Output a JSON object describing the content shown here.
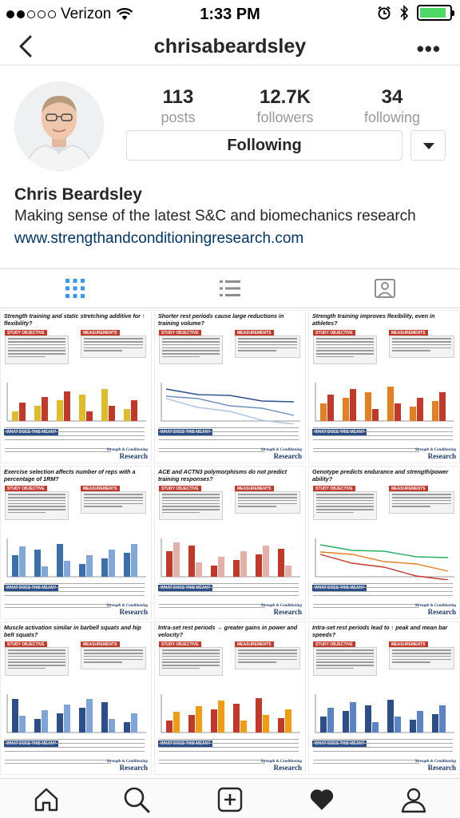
{
  "status_bar": {
    "carrier": "Verizon",
    "time": "1:33 PM",
    "signal_bars_filled": 2,
    "signal_bars_total": 5,
    "battery_level": 0.9
  },
  "nav": {
    "username": "chrisabeardsley"
  },
  "profile": {
    "posts_count": "113",
    "posts_label": "posts",
    "followers_count": "12.7K",
    "followers_label": "followers",
    "following_count": "34",
    "following_label": "following",
    "follow_button_label": "Following",
    "full_name": "Chris Beardsley",
    "bio": "Making sense of the latest S&C and biomechanics research",
    "website": "www.strengthandconditioningresearch.com"
  },
  "posts": [
    {
      "title": "Strength training and static stretching additive for ↑ flexibility?",
      "objective": "STUDY OBJECTIVE",
      "measurements": "MEASUREMENTS",
      "meaning": "WHAT DOES THIS MEAN?",
      "brand_top": "Strength & Conditioning",
      "brand_bottom": "Research"
    },
    {
      "title": "Shorter rest periods cause large reductions in training volume?",
      "objective": "STUDY OBJECTIVE",
      "measurements": "MEASUREMENTS",
      "meaning": "WHAT DOES THIS MEAN?",
      "brand_top": "Strength & Conditioning",
      "brand_bottom": "Research"
    },
    {
      "title": "Strength training improves flexibility, even in athletes?",
      "objective": "STUDY OBJECTIVE",
      "measurements": "MEASUREMENTS",
      "meaning": "WHAT DOES THIS MEAN?",
      "brand_top": "Strength & Conditioning",
      "brand_bottom": "Research"
    },
    {
      "title": "Exercise selection affects number of reps with a percentage of 1RM?",
      "objective": "STUDY OBJECTIVE",
      "measurements": "MEASUREMENTS",
      "meaning": "WHAT DOES THIS MEAN?",
      "brand_top": "Strength & Conditioning",
      "brand_bottom": "Research"
    },
    {
      "title": "ACE and ACTN3 polymorphisms do not predict training responses?",
      "objective": "STUDY OBJECTIVE",
      "measurements": "MEASUREMENTS",
      "meaning": "WHAT DOES THIS MEAN?",
      "brand_top": "Strength & Conditioning",
      "brand_bottom": "Research"
    },
    {
      "title": "Genotype predicts endurance and strength/power ability?",
      "objective": "STUDY OBJECTIVE",
      "measurements": "MEASUREMENTS",
      "meaning": "WHAT DOES THIS MEAN?",
      "brand_top": "Strength & Conditioning",
      "brand_bottom": "Research"
    },
    {
      "title": "Muscle activation similar in barbell squats and hip belt squats?",
      "objective": "STUDY OBJECTIVE",
      "measurements": "MEASUREMENTS",
      "meaning": "WHAT DOES THIS MEAN?",
      "brand_top": "Strength & Conditioning",
      "brand_bottom": "Research"
    },
    {
      "title": "Intra-set rest periods → greater gains in power and velocity?",
      "objective": "STUDY OBJECTIVE",
      "measurements": "MEASUREMENTS",
      "meaning": "WHAT DOES THIS MEAN?",
      "brand_top": "Strength & Conditioning",
      "brand_bottom": "Research"
    },
    {
      "title": "Intra-set rest periods lead to ↑ peak and mean bar speeds?",
      "objective": "STUDY OBJECTIVE",
      "measurements": "MEASUREMENTS",
      "meaning": "WHAT DOES THIS MEAN?",
      "brand_top": "Strength & Conditioning",
      "brand_bottom": "Research"
    }
  ],
  "icons": {
    "back": "chevron-left-icon",
    "more": "more-dots-icon",
    "grid_view": "grid-view-icon",
    "list_view": "list-view-icon",
    "home": "home-icon",
    "search": "search-icon",
    "add": "add-post-icon",
    "activity": "heart-icon",
    "profile": "profile-icon"
  },
  "colors": {
    "link": "#003569",
    "accent_red": "#c0392b",
    "accent_blue": "#2c4f8c",
    "active_tab": "#3897f0"
  }
}
